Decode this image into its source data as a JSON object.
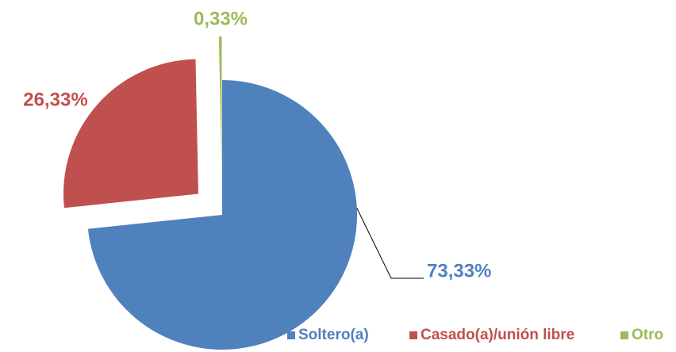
{
  "chart_data": {
    "type": "pie",
    "categories": [
      "Soltero(a)",
      "Casado(a)/unión libre",
      "Otro"
    ],
    "values": [
      73.33,
      26.33,
      0.33
    ],
    "value_labels": [
      "73,33%",
      "26,33%",
      "0,33%"
    ],
    "colors": [
      "#4f81bd",
      "#c0504d",
      "#9bbb59"
    ],
    "legend": "bottom-right"
  }
}
